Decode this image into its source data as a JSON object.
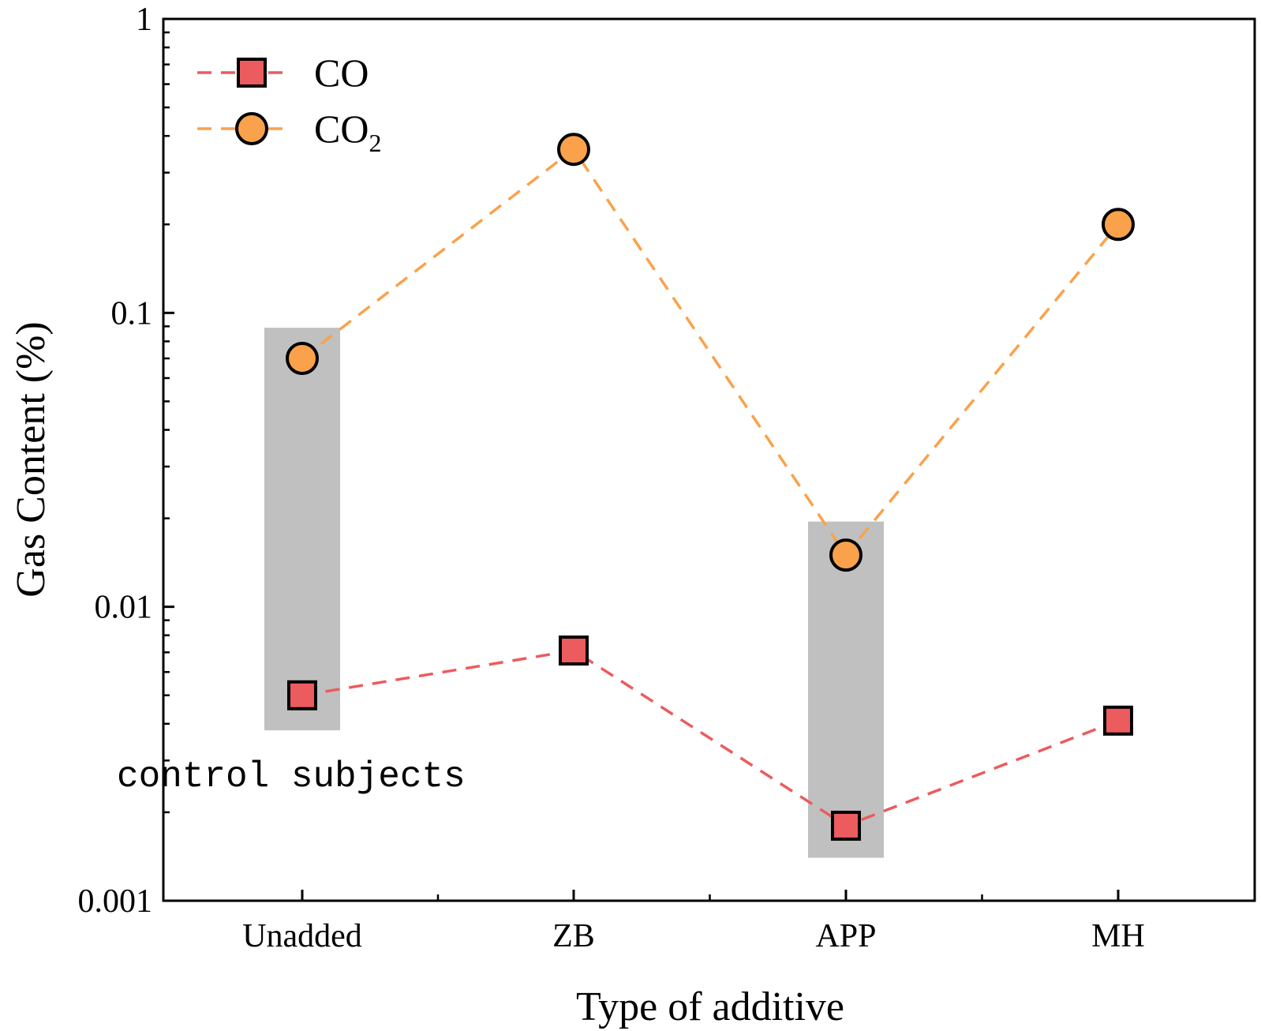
{
  "chart_data": {
    "type": "line",
    "title": "",
    "xlabel": "Type of additive",
    "ylabel": "Gas Content (%)",
    "yscale": "log",
    "ylim": [
      0.001,
      1
    ],
    "yticks": [
      "0.001",
      "0.01",
      "0.1",
      "1"
    ],
    "categories": [
      "Unadded",
      "ZB",
      "APP",
      "MH"
    ],
    "series": [
      {
        "name": "CO",
        "values": [
          0.005,
          0.0071,
          0.0018,
          0.0041
        ],
        "color": "#ec5b5e",
        "marker": "square",
        "line_style": "dashed"
      },
      {
        "name": "CO",
        "name_subscript": "2",
        "values": [
          0.07,
          0.36,
          0.015,
          0.2
        ],
        "color": "#f9a24b",
        "marker": "circle",
        "line_style": "dashed"
      }
    ],
    "highlights": [
      {
        "category": "Unadded",
        "ymin": 0.0038,
        "ymax": 0.089,
        "color": "#c0c0c0"
      },
      {
        "category": "APP",
        "ymin": 0.0014,
        "ymax": 0.0195,
        "color": "#c0c0c0"
      }
    ],
    "annotations": [
      {
        "text": "control subjects"
      }
    ],
    "legend": "top-left",
    "grid": false
  }
}
